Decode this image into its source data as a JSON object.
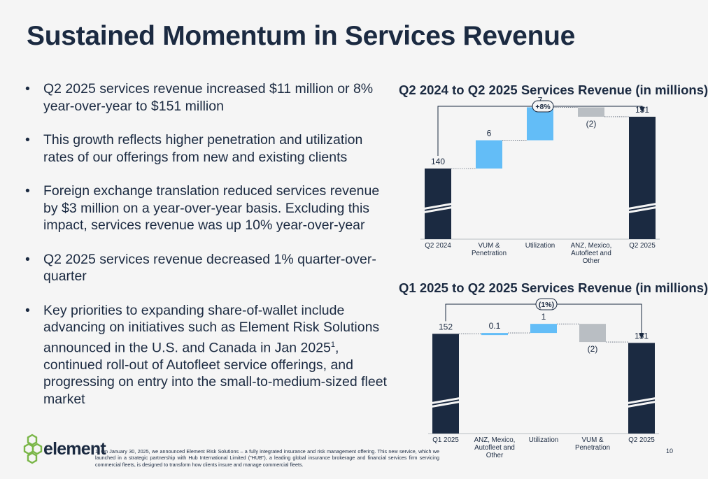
{
  "page": {
    "title": "Sustained Momentum in Services Revenue",
    "page_number": "10"
  },
  "bullets": [
    "Q2 2025 services revenue increased $11 million or 8% year-over-year to $151 million",
    "This growth reflects higher penetration and utilization rates of our offerings from new and existing clients",
    "Foreign exchange translation reduced services revenue by $3 million on a year-over-year basis. Excluding this impact, services revenue was up 10% year-over-year",
    "Q2 2025 services revenue decreased 1% quarter-over-quarter",
    {
      "text": "Key priorities to expanding share-of-wallet include advancing on initiatives such as Element Risk Solutions announced in the U.S. and Canada in Jan 2025",
      "sup": "1",
      "text_after": ", continued roll-out of Autofleet service offerings, and progressing on entry into the small-to-medium-sized fleet market"
    }
  ],
  "footnote": "1. On January 30, 2025, we announced Element Risk Solutions – a fully integrated insurance and risk management offering. This new service, which we launched in a strategic partnership with Hub International Limited (\"HUB\"), a leading global insurance brokerage and financial services firm servicing commercial fleets, is designed to transform how clients insure and manage commercial fleets.",
  "logo": {
    "text": "element"
  },
  "colors": {
    "navy": "#1b2a41",
    "light_blue": "#63bdf7",
    "gray": "#b9bec3",
    "green": "#7ab648"
  },
  "chart_data": [
    {
      "type": "waterfall",
      "title": "Q2 2024 to Q2 2025 Services Revenue (in millions)",
      "change_label": "+8%",
      "categories": [
        "Q2 2024",
        "VUM & Penetration",
        "Utilization",
        "ANZ, Mexico, Autofleet and Other",
        "Q2 2025"
      ],
      "values": [
        140,
        6,
        7,
        -2,
        151
      ],
      "value_labels": [
        "140",
        "6",
        "7",
        "(2)",
        "151"
      ],
      "bar_kinds": [
        "total",
        "increase",
        "increase",
        "decrease",
        "total"
      ],
      "axis_break": true
    },
    {
      "type": "waterfall",
      "title": "Q1 2025 to Q2 2025 Services Revenue (in millions)",
      "change_label": "(1%)",
      "categories": [
        "Q1 2025",
        "ANZ, Mexico, Autofleet and Other",
        "Utilization",
        "VUM & Penetration",
        "Q2 2025"
      ],
      "values": [
        152,
        0.1,
        1,
        -2,
        151
      ],
      "value_labels": [
        "152",
        "0.1",
        "1",
        "(2)",
        "151"
      ],
      "bar_kinds": [
        "total",
        "increase",
        "increase",
        "decrease",
        "total"
      ],
      "axis_break": true
    }
  ]
}
